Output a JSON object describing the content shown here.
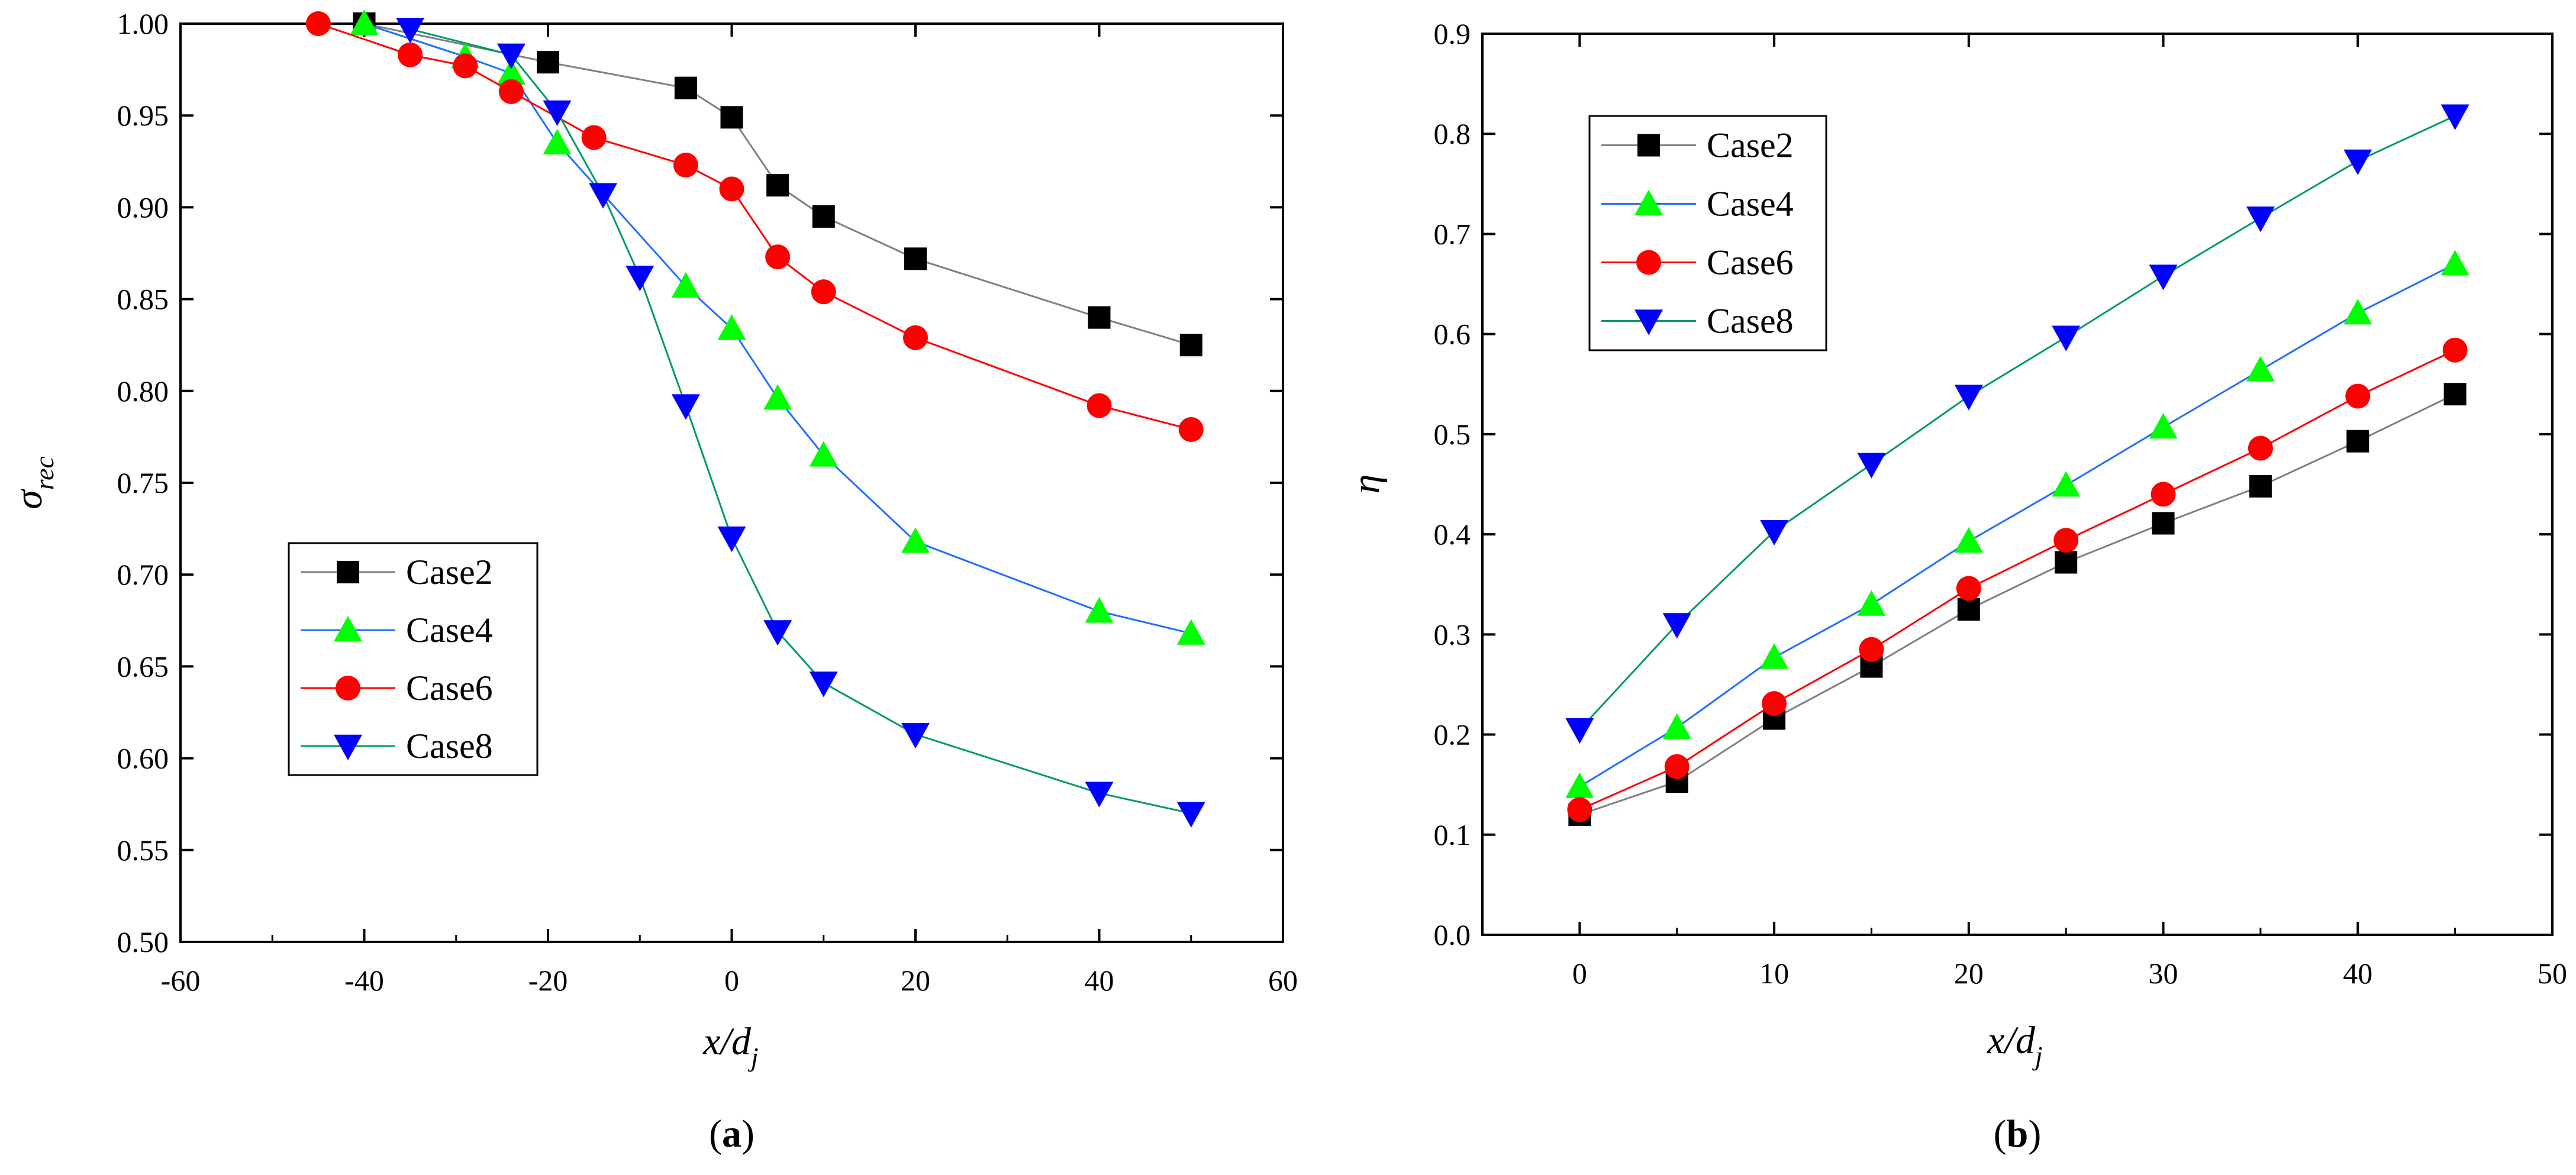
{
  "chart_data": [
    {
      "type": "line",
      "panel_label": "(a)",
      "panel_letter": "a",
      "xlabel": "x/d",
      "xlabel_sub": "j",
      "ylabel": "σ",
      "ylabel_sub": "rec",
      "xlim": [
        -60,
        60
      ],
      "ylim": [
        0.5,
        1.0
      ],
      "xticks": [
        -60,
        -40,
        -20,
        0,
        20,
        40,
        60
      ],
      "yticks": [
        0.5,
        0.55,
        0.6,
        0.65,
        0.7,
        0.75,
        0.8,
        0.85,
        0.9,
        0.95,
        1.0
      ],
      "ytick_labels": [
        "0.50",
        "0.55",
        "0.60",
        "0.65",
        "0.70",
        "0.75",
        "0.80",
        "0.85",
        "0.90",
        "0.95",
        "1.00"
      ],
      "legend_position": "center-left",
      "series": [
        {
          "name": "Case2",
          "marker": "square",
          "line_color": "#808080",
          "marker_color": "#000000",
          "x": [
            -40,
            -20,
            -5,
            0,
            5,
            10,
            20,
            40,
            50
          ],
          "y": [
            1.0,
            0.979,
            0.965,
            0.949,
            0.912,
            0.895,
            0.872,
            0.84,
            0.825
          ]
        },
        {
          "name": "Case4",
          "marker": "triangle-up",
          "line_color": "#1f6fff",
          "marker_color": "#00ff00",
          "x": [
            -40,
            -29,
            -24,
            -19,
            -5,
            0,
            5,
            10,
            20,
            40,
            50
          ],
          "y": [
            1.0,
            0.982,
            0.973,
            0.935,
            0.857,
            0.834,
            0.796,
            0.765,
            0.718,
            0.68,
            0.668
          ]
        },
        {
          "name": "Case6",
          "marker": "circle",
          "line_color": "#ff0000",
          "marker_color": "#ff0000",
          "x": [
            -45,
            -35,
            -29,
            -24,
            -15,
            -5,
            0,
            5,
            10,
            20,
            40,
            50
          ],
          "y": [
            1.0,
            0.983,
            0.977,
            0.963,
            0.938,
            0.923,
            0.91,
            0.873,
            0.854,
            0.829,
            0.792,
            0.779
          ]
        },
        {
          "name": "Case8",
          "marker": "triangle-down",
          "line_color": "#009966",
          "marker_color": "#0000ff",
          "x": [
            -35,
            -24,
            -19,
            -14,
            -10,
            -5,
            0,
            5,
            10,
            20,
            40,
            50
          ],
          "y": [
            0.997,
            0.983,
            0.952,
            0.907,
            0.862,
            0.792,
            0.72,
            0.669,
            0.641,
            0.613,
            0.581,
            0.57
          ]
        }
      ]
    },
    {
      "type": "line",
      "panel_label": "(b)",
      "panel_letter": "b",
      "xlabel": "x/d",
      "xlabel_sub": "j",
      "ylabel": "η",
      "ylabel_sub": "",
      "xlim": [
        -5,
        50
      ],
      "ylim": [
        0.0,
        0.9
      ],
      "xticks": [
        0,
        10,
        20,
        30,
        40,
        50
      ],
      "yticks": [
        0.0,
        0.1,
        0.2,
        0.3,
        0.4,
        0.5,
        0.6,
        0.7,
        0.8,
        0.9
      ],
      "ytick_labels": [
        "0.0",
        "0.1",
        "0.2",
        "0.3",
        "0.4",
        "0.5",
        "0.6",
        "0.7",
        "0.8",
        "0.9"
      ],
      "legend_position": "top-left",
      "series": [
        {
          "name": "Case2",
          "marker": "square",
          "line_color": "#808080",
          "marker_color": "#000000",
          "x": [
            0,
            5,
            10,
            15,
            20,
            25,
            30,
            35,
            40,
            45
          ],
          "y": [
            0.12,
            0.153,
            0.216,
            0.268,
            0.325,
            0.372,
            0.411,
            0.448,
            0.493,
            0.54
          ]
        },
        {
          "name": "Case4",
          "marker": "triangle-up",
          "line_color": "#1f6fff",
          "marker_color": "#00ff00",
          "x": [
            0,
            5,
            10,
            15,
            20,
            25,
            30,
            35,
            40,
            45
          ],
          "y": [
            0.148,
            0.207,
            0.277,
            0.33,
            0.393,
            0.449,
            0.507,
            0.564,
            0.621,
            0.67
          ]
        },
        {
          "name": "Case6",
          "marker": "circle",
          "line_color": "#ff0000",
          "marker_color": "#ff0000",
          "x": [
            0,
            5,
            10,
            15,
            20,
            25,
            30,
            35,
            40,
            45
          ],
          "y": [
            0.125,
            0.168,
            0.231,
            0.285,
            0.346,
            0.394,
            0.44,
            0.486,
            0.538,
            0.584
          ]
        },
        {
          "name": "Case8",
          "marker": "triangle-down",
          "line_color": "#009966",
          "marker_color": "#0000ff",
          "x": [
            0,
            5,
            10,
            15,
            20,
            25,
            30,
            35,
            40,
            45
          ],
          "y": [
            0.205,
            0.31,
            0.403,
            0.47,
            0.538,
            0.597,
            0.658,
            0.716,
            0.773,
            0.818
          ]
        }
      ]
    }
  ]
}
